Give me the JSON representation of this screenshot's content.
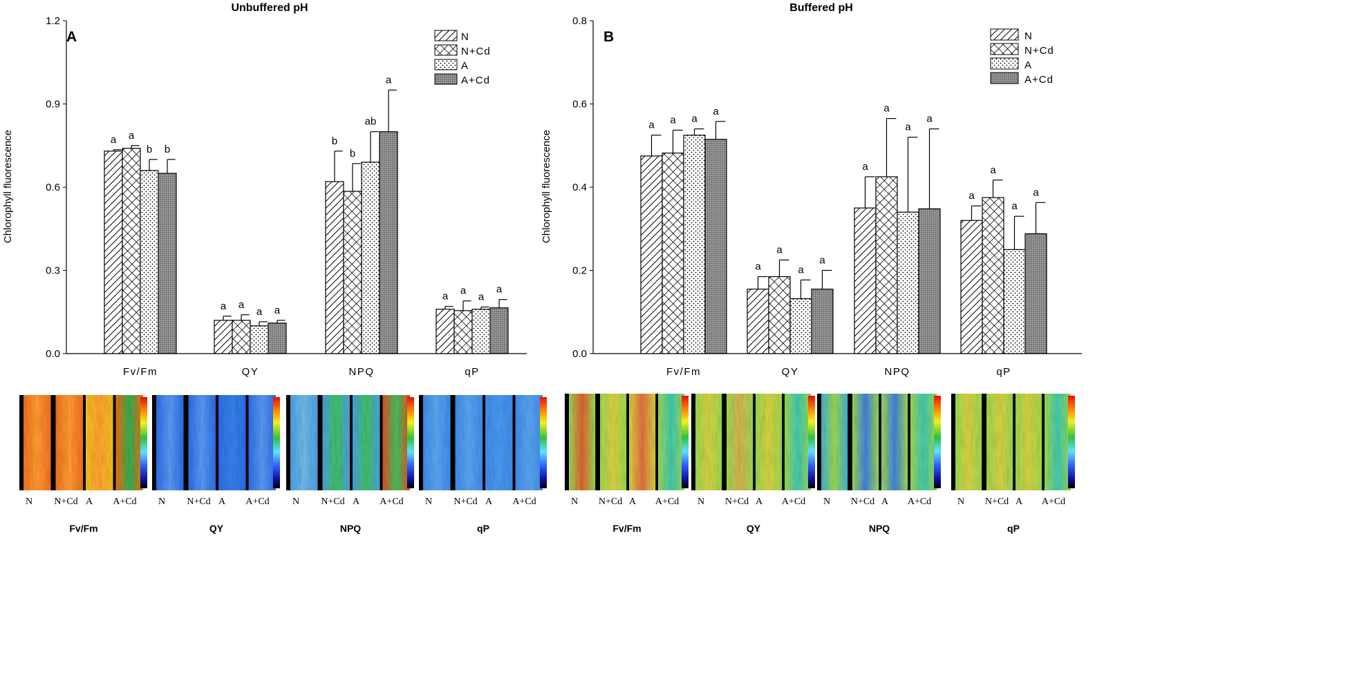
{
  "chart_data": [
    {
      "type": "bar",
      "panel_label": "A",
      "title": "Unbuffered pH",
      "ylabel": "Chlorophyll fluorescence",
      "xlabel": "",
      "ylim": [
        0,
        1.2
      ],
      "yticks": [
        "0.0",
        "0.3",
        "0.6",
        "0.9",
        "1.2"
      ],
      "ytick_values": [
        0,
        0.3,
        0.6,
        0.9,
        1.2
      ],
      "grid": false,
      "legend_position": "top-right",
      "categories": [
        "Fv/Fm",
        "QY",
        "NPQ",
        "qP"
      ],
      "series": [
        {
          "name": "N",
          "pattern": "diag",
          "values": [
            0.73,
            0.12,
            0.62,
            0.16
          ],
          "errors": [
            0.005,
            0.015,
            0.11,
            0.01
          ],
          "letters": [
            "a",
            "a",
            "b",
            "a"
          ]
        },
        {
          "name": "N+Cd",
          "pattern": "cross",
          "values": [
            0.74,
            0.12,
            0.585,
            0.155
          ],
          "errors": [
            0.01,
            0.02,
            0.1,
            0.035
          ],
          "letters": [
            "a",
            "a",
            "b",
            "a"
          ]
        },
        {
          "name": "A",
          "pattern": "dots",
          "values": [
            0.66,
            0.1,
            0.69,
            0.16
          ],
          "errors": [
            0.04,
            0.015,
            0.11,
            0.008
          ],
          "letters": [
            "b",
            "a",
            "ab",
            "a"
          ]
        },
        {
          "name": "A+Cd",
          "pattern": "dense",
          "values": [
            0.65,
            0.11,
            0.8,
            0.165
          ],
          "errors": [
            0.05,
            0.01,
            0.15,
            0.03
          ],
          "letters": [
            "b",
            "a",
            "a",
            "a"
          ]
        }
      ]
    },
    {
      "type": "bar",
      "panel_label": "B",
      "title": "Buffered pH",
      "ylabel": "Chlorophyll fluorescence",
      "xlabel": "",
      "ylim": [
        0,
        0.8
      ],
      "yticks": [
        "0.0",
        "0.2",
        "0.4",
        "0.6",
        "0.8"
      ],
      "ytick_values": [
        0,
        0.2,
        0.4,
        0.6,
        0.8
      ],
      "grid": false,
      "legend_position": "top-right",
      "categories": [
        "Fv/Fm",
        "QY",
        "NPQ",
        "qP"
      ],
      "series": [
        {
          "name": "N",
          "pattern": "diag",
          "values": [
            0.475,
            0.155,
            0.35,
            0.32
          ],
          "errors": [
            0.05,
            0.03,
            0.075,
            0.035
          ],
          "letters": [
            "a",
            "a",
            "a",
            "a"
          ]
        },
        {
          "name": "N+Cd",
          "pattern": "cross",
          "values": [
            0.482,
            0.185,
            0.425,
            0.375
          ],
          "errors": [
            0.055,
            0.04,
            0.14,
            0.042
          ],
          "letters": [
            "a",
            "a",
            "a",
            "a"
          ]
        },
        {
          "name": "A",
          "pattern": "dots",
          "values": [
            0.525,
            0.132,
            0.34,
            0.25
          ],
          "errors": [
            0.015,
            0.045,
            0.18,
            0.08
          ],
          "letters": [
            "a",
            "a",
            "a",
            "a"
          ]
        },
        {
          "name": "A+Cd",
          "pattern": "dense",
          "values": [
            0.515,
            0.155,
            0.348,
            0.288
          ],
          "errors": [
            0.043,
            0.045,
            0.192,
            0.075
          ],
          "letters": [
            "a",
            "a",
            "a",
            "a"
          ]
        }
      ]
    }
  ],
  "images": {
    "A": [
      {
        "caption": "Fv/Fm",
        "kind": "fvfm",
        "labels": [
          "N",
          "N+Cd",
          "A",
          "A+Cd"
        ]
      },
      {
        "caption": "QY",
        "kind": "qy",
        "labels": [
          "N",
          "N+Cd",
          "A",
          "A+Cd"
        ]
      },
      {
        "caption": "NPQ",
        "kind": "npq",
        "labels": [
          "N",
          "N+Cd",
          "A",
          "A+Cd"
        ]
      },
      {
        "caption": "qP",
        "kind": "qp",
        "labels": [
          "N",
          "N+Cd",
          "A",
          "A+Cd"
        ]
      }
    ],
    "B": [
      {
        "caption": "Fv/Fm",
        "kind": "b_fvfm",
        "labels": [
          "N",
          "N+Cd",
          "A",
          "A+Cd"
        ]
      },
      {
        "caption": "QY",
        "kind": "b_qy",
        "labels": [
          "N",
          "N+Cd",
          "A",
          "A+Cd"
        ]
      },
      {
        "caption": "NPQ",
        "kind": "b_npq",
        "labels": [
          "N",
          "N+Cd",
          "A",
          "A+Cd"
        ]
      },
      {
        "caption": "qP",
        "kind": "b_qp",
        "labels": [
          "N",
          "N+Cd",
          "A",
          "A+Cd"
        ]
      }
    ]
  },
  "colors": {
    "fvfm": "#f07020",
    "fvfm_light": "#ff9a30",
    "qy": "#2a6ee6",
    "qy_light": "#5a98f0",
    "npq": "#4aa0e0",
    "npq_green": "#40c060",
    "qp": "#3e8cea",
    "b_green": "#9ad850",
    "b_yellow": "#d8d040",
    "b_cyan": "#40c8b0"
  }
}
